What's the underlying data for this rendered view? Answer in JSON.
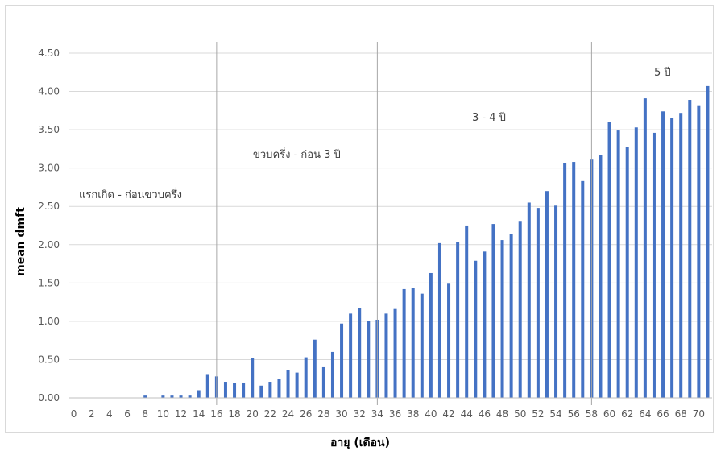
{
  "chart_data": {
    "type": "bar",
    "title": "",
    "xlabel": "อายุ (เดือน)",
    "ylabel": "mean dmft",
    "ylim": [
      0,
      4.5
    ],
    "yticks": [
      "0.00",
      "0.50",
      "1.00",
      "1.50",
      "2.00",
      "2.50",
      "3.00",
      "3.50",
      "4.00",
      "4.50"
    ],
    "grid": "horizontal",
    "bar_color": "#4472c4",
    "categories": [
      0,
      1,
      2,
      3,
      4,
      5,
      6,
      7,
      8,
      9,
      10,
      11,
      12,
      13,
      14,
      15,
      16,
      17,
      18,
      19,
      20,
      21,
      22,
      23,
      24,
      25,
      26,
      27,
      28,
      29,
      30,
      31,
      32,
      33,
      34,
      35,
      36,
      37,
      38,
      39,
      40,
      41,
      42,
      43,
      44,
      45,
      46,
      47,
      48,
      49,
      50,
      51,
      52,
      53,
      54,
      55,
      56,
      57,
      58,
      59,
      60,
      61,
      62,
      63,
      64,
      65,
      66,
      67,
      68,
      69,
      70,
      71
    ],
    "xtick_labels": [
      "0",
      "2",
      "4",
      "6",
      "8",
      "10",
      "12",
      "14",
      "16",
      "18",
      "20",
      "22",
      "24",
      "26",
      "28",
      "30",
      "32",
      "34",
      "36",
      "38",
      "40",
      "42",
      "44",
      "46",
      "48",
      "50",
      "52",
      "54",
      "56",
      "58",
      "60",
      "62",
      "64",
      "66",
      "68",
      "70"
    ],
    "values": [
      0,
      0,
      0,
      0,
      0,
      0,
      0,
      0,
      0.03,
      0,
      0.03,
      0.03,
      0.03,
      0.03,
      0.1,
      0.3,
      0.28,
      0.21,
      0.19,
      0.2,
      0.52,
      0.16,
      0.21,
      0.25,
      0.36,
      0.33,
      0.53,
      0.76,
      0.4,
      0.6,
      0.97,
      1.1,
      1.17,
      1.0,
      1.02,
      1.1,
      1.16,
      1.42,
      1.43,
      1.36,
      1.63,
      2.02,
      1.49,
      2.03,
      2.24,
      1.79,
      1.91,
      2.27,
      2.06,
      2.14,
      2.3,
      2.55,
      2.48,
      2.7,
      2.51,
      3.07,
      3.08,
      2.83,
      3.11,
      3.17,
      3.6,
      3.49,
      3.27,
      3.53,
      3.91,
      3.46,
      3.74,
      3.65,
      3.72,
      3.89,
      3.82,
      4.07
    ],
    "dividers": [
      16,
      34,
      58
    ],
    "annotations": [
      {
        "text": "แรกเกิด - ก่อนขวบครึ่ง"
      },
      {
        "text": "ขวบครึ่ง - ก่อน 3 ปี"
      },
      {
        "text": "3 - 4 ปี"
      },
      {
        "text": "5 ปี"
      }
    ]
  }
}
